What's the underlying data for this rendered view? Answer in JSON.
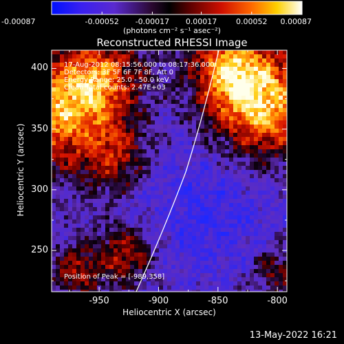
{
  "colorbar": {
    "ticks": [
      -0.00087,
      -0.00052,
      -0.00017,
      0.00017,
      0.00052,
      0.00087
    ],
    "tick_labels": [
      "-0.00087",
      "-0.00052",
      "-0.00017",
      "0.00017",
      "0.00052",
      "0.00087"
    ],
    "unit": "(photons cm⁻² s⁻¹ asec⁻²)",
    "colormap": "RHESSI blue-purple-red-yellow-white"
  },
  "chart_data": {
    "type": "heatmap",
    "title": "Reconstructed RHESSI Image",
    "xlabel": "Heliocentric X (arcsec)",
    "ylabel": "Heliocentric Y (arcsec)",
    "xlim": [
      -990,
      -792
    ],
    "ylim": [
      216,
      415
    ],
    "x_ticks": [
      -950,
      -900,
      -850,
      -800
    ],
    "y_ticks": [
      250,
      300,
      350,
      400
    ],
    "limb_line": "white solar limb curve",
    "peak": [
      -989,
      358
    ]
  },
  "annotations": {
    "time_range": "17-Aug-2012 08:15:56.000 to 08:17:36.000",
    "detectors": "Detectors: 3F 5F 6F 7F 8F, Att 0",
    "energy": "Energy Range: 25.0 - 50.0 keV",
    "clean": "Clean    Total counts: 2.47E+03",
    "peak_text": "Position of Peak = [-989,358]"
  },
  "footer": {
    "timestamp": "13-May-2022 16:21"
  },
  "colors": {
    "background": "#000000",
    "text": "#ffffff"
  }
}
